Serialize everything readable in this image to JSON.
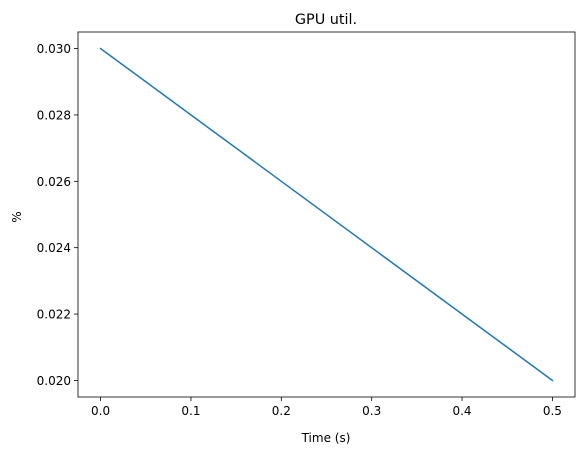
{
  "chart_data": {
    "type": "line",
    "title": "GPU util.",
    "xlabel": "Time (s)",
    "ylabel": "%",
    "xlim": [
      -0.025,
      0.525
    ],
    "ylim": [
      0.0195,
      0.0305
    ],
    "xticks": [
      0.0,
      0.1,
      0.2,
      0.3,
      0.4,
      0.5
    ],
    "xtick_labels": [
      "0.0",
      "0.1",
      "0.2",
      "0.3",
      "0.4",
      "0.5"
    ],
    "yticks": [
      0.02,
      0.022,
      0.024,
      0.026,
      0.028,
      0.03
    ],
    "ytick_labels": [
      "0.020",
      "0.022",
      "0.024",
      "0.026",
      "0.028",
      "0.030"
    ],
    "grid": false,
    "series": [
      {
        "x": [
          0.0,
          0.5
        ],
        "y": [
          0.03,
          0.02
        ],
        "color": "#1f77b4"
      }
    ]
  }
}
